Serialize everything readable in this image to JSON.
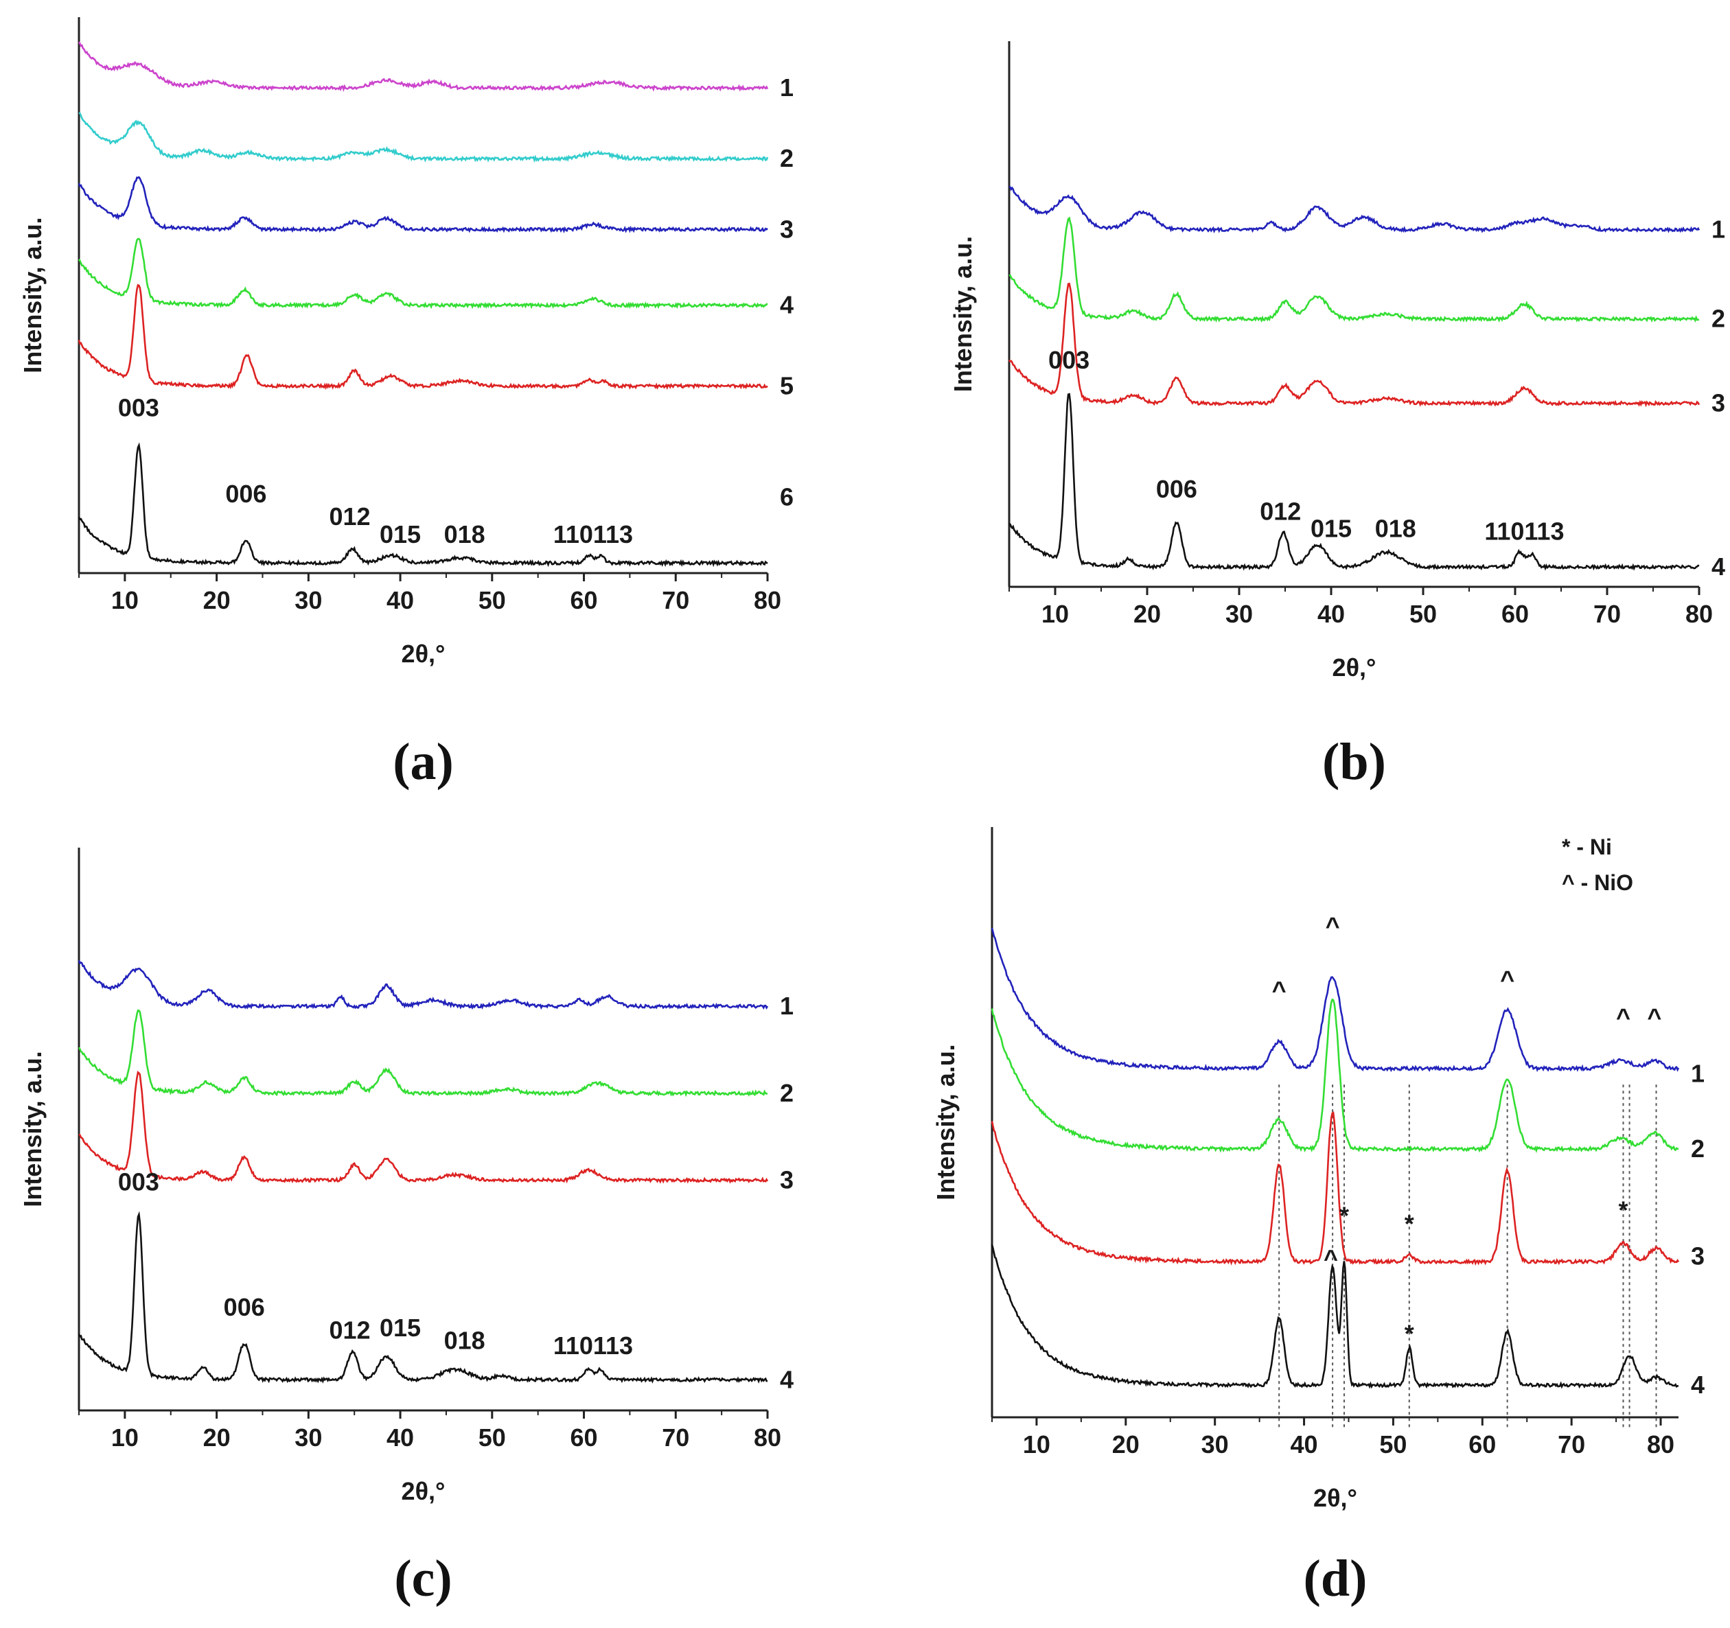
{
  "colors": {
    "magenta": "#cc44cc",
    "cyan": "#33cccc",
    "blue": "#2222bb",
    "green": "#33dd33",
    "red": "#dd2222",
    "black": "#111111",
    "axis": "#222222",
    "refline": "#555555"
  },
  "chart_data": [
    {
      "id": "a",
      "type": "line",
      "panel_label": "(a)",
      "xlabel": "2θ,°",
      "ylabel": "Intensity, a.u.",
      "xlim": [
        5,
        80
      ],
      "ylim": [
        0,
        11
      ],
      "x_ticks": [
        10,
        20,
        30,
        40,
        50,
        60,
        70,
        80
      ],
      "peak_labels": [
        {
          "text": "003",
          "x": 11.5,
          "y": 3.1
        },
        {
          "text": "006",
          "x": 23.2,
          "y": 1.4
        },
        {
          "text": "012",
          "x": 34.5,
          "y": 0.95
        },
        {
          "text": "015",
          "x": 40.0,
          "y": 0.6
        },
        {
          "text": "018",
          "x": 47.0,
          "y": 0.6
        },
        {
          "text": "110113",
          "x": 61.0,
          "y": 0.6
        }
      ],
      "series": [
        {
          "name": "1",
          "color": "magenta",
          "offset": 9.6,
          "end_y": 9.6,
          "peaks": [
            [
              11.5,
              0.35,
              1.8
            ],
            [
              19.5,
              0.12,
              1.5
            ],
            [
              38.5,
              0.15,
              1.5
            ],
            [
              43.5,
              0.12,
              1.2
            ],
            [
              62.5,
              0.12,
              1.8
            ]
          ]
        },
        {
          "name": "2",
          "color": "cyan",
          "offset": 8.2,
          "end_y": 8.2,
          "peaks": [
            [
              11.5,
              0.6,
              1.2
            ],
            [
              18.5,
              0.15,
              1.2
            ],
            [
              23.5,
              0.12,
              1.2
            ],
            [
              35.0,
              0.12,
              1.2
            ],
            [
              38.5,
              0.18,
              1.2
            ],
            [
              61.5,
              0.12,
              1.5
            ]
          ]
        },
        {
          "name": "3",
          "color": "blue",
          "offset": 6.8,
          "end_y": 6.8,
          "peaks": [
            [
              11.5,
              0.9,
              0.8
            ],
            [
              23.0,
              0.22,
              0.8
            ],
            [
              35.0,
              0.15,
              0.9
            ],
            [
              38.5,
              0.22,
              1.0
            ],
            [
              61.0,
              0.1,
              1.0
            ]
          ]
        },
        {
          "name": "4",
          "color": "green",
          "offset": 5.3,
          "end_y": 5.3,
          "peaks": [
            [
              11.5,
              1.2,
              0.6
            ],
            [
              23.0,
              0.3,
              0.7
            ],
            [
              35.0,
              0.2,
              0.8
            ],
            [
              38.5,
              0.22,
              1.0
            ],
            [
              61.0,
              0.12,
              0.9
            ]
          ]
        },
        {
          "name": "5",
          "color": "red",
          "offset": 3.7,
          "end_y": 3.7,
          "peaks": [
            [
              11.5,
              1.9,
              0.5
            ],
            [
              23.3,
              0.6,
              0.6
            ],
            [
              35.0,
              0.3,
              0.6
            ],
            [
              39.0,
              0.2,
              1.0
            ],
            [
              46.5,
              0.1,
              1.5
            ],
            [
              60.5,
              0.12,
              0.5
            ],
            [
              62.0,
              0.1,
              0.5
            ]
          ]
        },
        {
          "name": "6",
          "color": "black",
          "offset": 0.2,
          "end_y": 1.5,
          "peaks": [
            [
              11.5,
              2.2,
              0.45
            ],
            [
              23.2,
              0.45,
              0.55
            ],
            [
              34.8,
              0.28,
              0.6
            ],
            [
              39.0,
              0.15,
              1.1
            ],
            [
              46.5,
              0.1,
              1.5
            ],
            [
              60.5,
              0.15,
              0.45
            ],
            [
              61.8,
              0.13,
              0.45
            ]
          ]
        }
      ]
    },
    {
      "id": "b",
      "type": "line",
      "panel_label": "(b)",
      "xlabel": "2θ,°",
      "ylabel": "Intensity, a.u.",
      "xlim": [
        5,
        80
      ],
      "ylim": [
        0,
        11
      ],
      "x_ticks": [
        10,
        20,
        30,
        40,
        50,
        60,
        70,
        80
      ],
      "peak_labels": [
        {
          "text": "003",
          "x": 11.5,
          "y": 4.4
        },
        {
          "text": "006",
          "x": 23.2,
          "y": 1.8
        },
        {
          "text": "012",
          "x": 34.5,
          "y": 1.35
        },
        {
          "text": "015",
          "x": 40.0,
          "y": 1.0
        },
        {
          "text": "018",
          "x": 47.0,
          "y": 1.0
        },
        {
          "text": "110113",
          "x": 61.0,
          "y": 0.95
        }
      ],
      "series": [
        {
          "name": "1",
          "color": "blue",
          "offset": 7.2,
          "end_y": 7.2,
          "peaks": [
            [
              11.5,
              0.55,
              1.3
            ],
            [
              19.5,
              0.35,
              1.3
            ],
            [
              33.5,
              0.15,
              0.5
            ],
            [
              38.5,
              0.45,
              1.2
            ],
            [
              43.5,
              0.25,
              1.3
            ],
            [
              52.0,
              0.12,
              1.2
            ],
            [
              60.0,
              0.1,
              1.0
            ],
            [
              63.0,
              0.22,
              1.5
            ],
            [
              67.0,
              0.08,
              1.0
            ]
          ]
        },
        {
          "name": "2",
          "color": "green",
          "offset": 5.4,
          "end_y": 5.4,
          "peaks": [
            [
              11.5,
              1.9,
              0.6
            ],
            [
              18.5,
              0.15,
              0.9
            ],
            [
              23.2,
              0.5,
              0.7
            ],
            [
              35.0,
              0.35,
              0.7
            ],
            [
              38.5,
              0.45,
              1.1
            ],
            [
              46.0,
              0.1,
              1.5
            ],
            [
              61.0,
              0.3,
              0.9
            ]
          ]
        },
        {
          "name": "3",
          "color": "red",
          "offset": 3.7,
          "end_y": 3.7,
          "peaks": [
            [
              11.5,
              2.3,
              0.55
            ],
            [
              18.5,
              0.15,
              0.9
            ],
            [
              23.2,
              0.5,
              0.7
            ],
            [
              35.0,
              0.35,
              0.7
            ],
            [
              38.5,
              0.45,
              1.1
            ],
            [
              46.0,
              0.1,
              1.5
            ],
            [
              61.0,
              0.3,
              0.9
            ]
          ]
        },
        {
          "name": "4",
          "color": "black",
          "offset": 0.4,
          "end_y": 0.4,
          "peaks": [
            [
              11.5,
              3.4,
              0.45
            ],
            [
              18.0,
              0.15,
              0.5
            ],
            [
              23.2,
              0.9,
              0.55
            ],
            [
              34.8,
              0.7,
              0.55
            ],
            [
              38.5,
              0.45,
              1.0
            ],
            [
              46.0,
              0.3,
              1.5
            ],
            [
              60.5,
              0.3,
              0.45
            ],
            [
              61.8,
              0.25,
              0.45
            ]
          ]
        }
      ]
    },
    {
      "id": "c",
      "type": "line",
      "panel_label": "(c)",
      "xlabel": "2θ,°",
      "ylabel": "Intensity, a.u.",
      "xlim": [
        5,
        80
      ],
      "ylim": [
        0,
        11
      ],
      "x_ticks": [
        10,
        20,
        30,
        40,
        50,
        60,
        70,
        80
      ],
      "peak_labels": [
        {
          "text": "003",
          "x": 11.5,
          "y": 4.3
        },
        {
          "text": "006",
          "x": 23.0,
          "y": 1.85
        },
        {
          "text": "012",
          "x": 34.5,
          "y": 1.4
        },
        {
          "text": "015",
          "x": 40.0,
          "y": 1.45
        },
        {
          "text": "018",
          "x": 47.0,
          "y": 1.2
        },
        {
          "text": "110113",
          "x": 61.0,
          "y": 1.1
        }
      ],
      "series": [
        {
          "name": "1",
          "color": "blue",
          "offset": 7.9,
          "end_y": 7.9,
          "peaks": [
            [
              11.5,
              0.6,
              1.4
            ],
            [
              19.0,
              0.3,
              1.0
            ],
            [
              33.5,
              0.18,
              0.4
            ],
            [
              38.5,
              0.4,
              0.8
            ],
            [
              43.5,
              0.12,
              1.3
            ],
            [
              52.0,
              0.12,
              1.2
            ],
            [
              59.5,
              0.12,
              0.6
            ],
            [
              62.5,
              0.2,
              0.9
            ]
          ]
        },
        {
          "name": "2",
          "color": "green",
          "offset": 6.2,
          "end_y": 6.2,
          "peaks": [
            [
              11.5,
              1.5,
              0.6
            ],
            [
              19.0,
              0.2,
              0.9
            ],
            [
              23.0,
              0.3,
              0.7
            ],
            [
              35.0,
              0.22,
              0.7
            ],
            [
              38.5,
              0.45,
              0.9
            ],
            [
              51.5,
              0.08,
              1.2
            ],
            [
              61.5,
              0.2,
              1.2
            ]
          ]
        },
        {
          "name": "3",
          "color": "red",
          "offset": 4.5,
          "end_y": 4.5,
          "peaks": [
            [
              11.5,
              2.0,
              0.55
            ],
            [
              18.5,
              0.15,
              0.8
            ],
            [
              23.0,
              0.45,
              0.6
            ],
            [
              35.0,
              0.3,
              0.6
            ],
            [
              38.5,
              0.4,
              0.9
            ],
            [
              46.0,
              0.1,
              1.5
            ],
            [
              60.5,
              0.2,
              1.0
            ]
          ]
        },
        {
          "name": "4",
          "color": "black",
          "offset": 0.6,
          "end_y": 0.6,
          "peaks": [
            [
              11.5,
              3.1,
              0.45
            ],
            [
              18.5,
              0.25,
              0.5
            ],
            [
              23.0,
              0.7,
              0.6
            ],
            [
              34.8,
              0.55,
              0.55
            ],
            [
              38.5,
              0.45,
              0.9
            ],
            [
              46.0,
              0.2,
              1.5
            ],
            [
              51.0,
              0.08,
              0.8
            ],
            [
              60.5,
              0.2,
              0.45
            ],
            [
              61.8,
              0.2,
              0.45
            ]
          ]
        }
      ]
    },
    {
      "id": "d",
      "type": "line",
      "panel_label": "(d)",
      "xlabel": "2θ,°",
      "ylabel": "Intensity, a.u.",
      "xlim": [
        5,
        82
      ],
      "ylim": [
        0,
        11
      ],
      "x_ticks": [
        10,
        20,
        30,
        40,
        50,
        60,
        70,
        80
      ],
      "legend": {
        "position": "top-right",
        "entries": [
          "*  - Ni",
          "^  - NiO"
        ]
      },
      "ref_lines": [
        37.2,
        43.2,
        44.5,
        51.8,
        62.8,
        75.8,
        76.5,
        79.5
      ],
      "markers": [
        {
          "text": "^",
          "x": 37.2,
          "y": 7.8
        },
        {
          "text": "^",
          "x": 43.2,
          "y": 9.0
        },
        {
          "text": "^",
          "x": 62.8,
          "y": 8.0
        },
        {
          "text": "^",
          "x": 75.8,
          "y": 7.3
        },
        {
          "text": "^",
          "x": 79.3,
          "y": 7.3
        },
        {
          "text": "*",
          "x": 44.5,
          "y": 3.6
        },
        {
          "text": "*",
          "x": 51.8,
          "y": 3.45
        },
        {
          "text": "*",
          "x": 75.8,
          "y": 3.7
        },
        {
          "text": "^",
          "x": 43.0,
          "y": 2.8
        },
        {
          "text": "*",
          "x": 51.8,
          "y": 1.4
        }
      ],
      "series": [
        {
          "name": "1",
          "color": "blue",
          "offset": 6.5,
          "end_y": 6.4,
          "peaks": [
            [
              37.2,
              0.5,
              0.9
            ],
            [
              43.2,
              1.7,
              1.0
            ],
            [
              62.8,
              1.1,
              1.0
            ],
            [
              75.5,
              0.15,
              1.2
            ],
            [
              79.3,
              0.15,
              0.8
            ]
          ]
        },
        {
          "name": "2",
          "color": "green",
          "offset": 5.0,
          "end_y": 5.0,
          "peaks": [
            [
              37.2,
              0.55,
              0.9
            ],
            [
              43.2,
              2.8,
              0.7
            ],
            [
              62.8,
              1.3,
              0.9
            ],
            [
              75.5,
              0.2,
              1.1
            ],
            [
              79.3,
              0.3,
              0.9
            ]
          ]
        },
        {
          "name": "3",
          "color": "red",
          "offset": 2.9,
          "end_y": 3.0,
          "peaks": [
            [
              37.2,
              1.8,
              0.6
            ],
            [
              43.2,
              2.8,
              0.55
            ],
            [
              51.8,
              0.12,
              0.5
            ],
            [
              62.8,
              1.7,
              0.65
            ],
            [
              75.8,
              0.35,
              0.8
            ],
            [
              79.5,
              0.25,
              0.8
            ]
          ]
        },
        {
          "name": "4",
          "color": "black",
          "offset": 0.6,
          "end_y": 0.6,
          "peaks": [
            [
              37.2,
              1.25,
              0.55
            ],
            [
              43.2,
              2.2,
              0.45
            ],
            [
              44.5,
              2.3,
              0.3
            ],
            [
              51.8,
              0.7,
              0.35
            ],
            [
              62.8,
              1.0,
              0.6
            ],
            [
              76.5,
              0.55,
              0.7
            ],
            [
              79.5,
              0.15,
              0.8
            ]
          ]
        }
      ]
    }
  ]
}
